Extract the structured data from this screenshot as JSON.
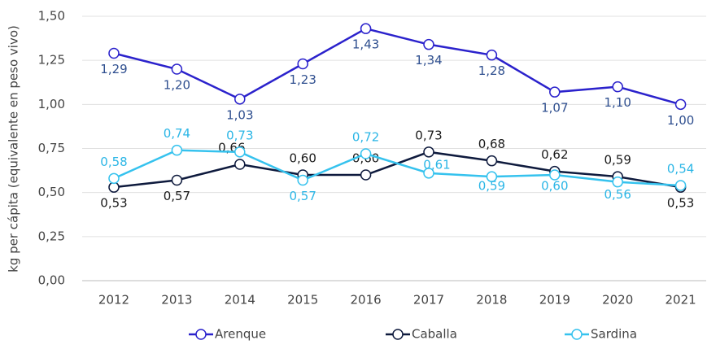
{
  "chart_data": {
    "type": "line",
    "ylabel": "kg per cápita (equivalente en peso vivo)",
    "categories": [
      "2012",
      "2013",
      "2014",
      "2015",
      "2016",
      "2017",
      "2018",
      "2019",
      "2020",
      "2021"
    ],
    "series": [
      {
        "name": "Arenque",
        "color": "#2b22cc",
        "label_color": "#2f4f8f",
        "values": [
          1.29,
          1.2,
          1.03,
          1.23,
          1.43,
          1.34,
          1.28,
          1.07,
          1.1,
          1.0
        ],
        "value_labels": [
          "1,29",
          "1,20",
          "1,03",
          "1,23",
          "1,43",
          "1,34",
          "1,28",
          "1,07",
          "1,10",
          "1,00"
        ]
      },
      {
        "name": "Caballa",
        "color": "#0e1a3d",
        "label_color": "#1a1a1a",
        "values": [
          0.53,
          0.57,
          0.66,
          0.6,
          0.6,
          0.73,
          0.68,
          0.62,
          0.59,
          0.53
        ],
        "value_labels": [
          "0,53",
          "0,57",
          "0,66",
          "0,60",
          "0,60",
          "0,73",
          "0,68",
          "0,62",
          "0,59",
          "0,53"
        ]
      },
      {
        "name": "Sardina",
        "color": "#35c2ee",
        "label_color": "#2bb6e6",
        "values": [
          0.58,
          0.74,
          0.73,
          0.57,
          0.72,
          0.61,
          0.59,
          0.6,
          0.56,
          0.54
        ],
        "value_labels": [
          "0,58",
          "0,74",
          "0,73",
          "0,57",
          "0,72",
          "0,61",
          "0,59",
          "0,60",
          "0,56",
          "0,54"
        ]
      }
    ],
    "ylim": [
      0,
      1.5
    ],
    "yticks": [
      {
        "value": 0,
        "label": "0,00"
      },
      {
        "value": 0.25,
        "label": "0,25"
      },
      {
        "value": 0.5,
        "label": "0,50"
      },
      {
        "value": 0.75,
        "label": "0,75"
      },
      {
        "value": 1.0,
        "label": "1,00"
      },
      {
        "value": 1.25,
        "label": "1,25"
      },
      {
        "value": 1.5,
        "label": "1,50"
      }
    ],
    "grid": true,
    "legend": "bottom"
  }
}
